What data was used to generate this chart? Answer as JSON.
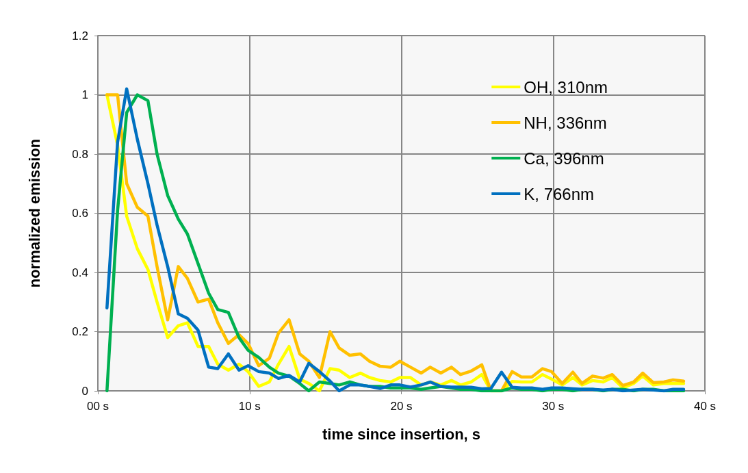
{
  "chart_data": {
    "type": "line",
    "xlabel": "time since insertion, s",
    "ylabel": "normalized emission",
    "x": [
      0.6,
      1.3,
      1.9,
      2.6,
      3.3,
      3.9,
      4.6,
      5.3,
      5.9,
      6.6,
      7.3,
      7.9,
      8.6,
      9.3,
      9.9,
      10.6,
      11.3,
      11.9,
      12.6,
      13.3,
      13.9,
      14.6,
      15.3,
      15.9,
      16.6,
      17.3,
      17.9,
      18.6,
      19.3,
      19.9,
      20.6,
      21.3,
      21.9,
      22.6,
      23.3,
      23.9,
      24.6,
      25.3,
      25.9,
      26.6,
      27.3,
      27.9,
      28.6,
      29.3,
      29.9,
      30.6,
      31.3,
      31.9,
      32.6,
      33.3,
      33.9,
      34.6,
      35.3,
      35.9,
      36.6,
      37.3,
      37.9,
      38.6
    ],
    "series": [
      {
        "name": "OH, 310nm",
        "color": "#ffff00",
        "values": [
          1.0,
          0.83,
          0.59,
          0.48,
          0.41,
          0.3,
          0.18,
          0.22,
          0.23,
          0.15,
          0.15,
          0.09,
          0.07,
          0.09,
          0.065,
          0.015,
          0.03,
          0.09,
          0.15,
          0.04,
          0.025,
          0,
          0.075,
          0.07,
          0.045,
          0.06,
          0.045,
          0.035,
          0.03,
          0.045,
          0.045,
          0.02,
          0.03,
          0.02,
          0.035,
          0.02,
          0.03,
          0.055,
          0,
          0,
          0.032,
          0.03,
          0.03,
          0.055,
          0.04,
          0.02,
          0.045,
          0.02,
          0.035,
          0.03,
          0.045,
          0.01,
          0.025,
          0.05,
          0.02,
          0.025,
          0.025,
          0.025
        ]
      },
      {
        "name": "NH, 336nm",
        "color": "#ffc000",
        "values": [
          1.0,
          1.0,
          0.7,
          0.62,
          0.59,
          0.42,
          0.24,
          0.42,
          0.38,
          0.3,
          0.31,
          0.23,
          0.16,
          0.19,
          0.16,
          0.085,
          0.11,
          0.195,
          0.24,
          0.125,
          0.1,
          0.045,
          0.2,
          0.145,
          0.12,
          0.125,
          0.1,
          0.083,
          0.08,
          0.1,
          0.08,
          0.06,
          0.08,
          0.06,
          0.08,
          0.055,
          0.067,
          0.088,
          0,
          0,
          0.065,
          0.047,
          0.047,
          0.075,
          0.065,
          0.025,
          0.063,
          0.025,
          0.05,
          0.043,
          0.055,
          0.018,
          0.03,
          0.06,
          0.028,
          0.03,
          0.037,
          0.033
        ]
      },
      {
        "name": "Ca, 396nm",
        "color": "#00b050",
        "values": [
          0,
          0.61,
          0.94,
          1.0,
          0.98,
          0.8,
          0.66,
          0.58,
          0.53,
          0.43,
          0.33,
          0.275,
          0.265,
          0.18,
          0.137,
          0.113,
          0.08,
          0.06,
          0.05,
          0.025,
          0,
          0.03,
          0.025,
          0.02,
          0.03,
          0.02,
          0.015,
          0.015,
          0.01,
          0.01,
          0.01,
          0.005,
          0.01,
          0.015,
          0.01,
          0.005,
          0.005,
          0,
          0,
          0,
          0.01,
          0.005,
          0.005,
          0,
          0.005,
          0.005,
          0,
          0.005,
          0.005,
          0,
          0.005,
          0.005,
          0,
          0.005,
          0.005,
          0,
          0,
          0
        ]
      },
      {
        "name": "K, 766nm",
        "color": "#0070c0",
        "values": [
          0.28,
          0.84,
          1.02,
          0.85,
          0.7,
          0.56,
          0.42,
          0.26,
          0.245,
          0.205,
          0.08,
          0.075,
          0.125,
          0.07,
          0.085,
          0.065,
          0.06,
          0.042,
          0.052,
          0.03,
          0.093,
          0.065,
          0.033,
          0,
          0.02,
          0.02,
          0.015,
          0.008,
          0.02,
          0.02,
          0.013,
          0.02,
          0.03,
          0.015,
          0.013,
          0.013,
          0.012,
          0.007,
          0.008,
          0.063,
          0.012,
          0.01,
          0.01,
          0.005,
          0.01,
          0.01,
          0.007,
          0.005,
          0.005,
          0.003,
          0.005,
          0,
          0.003,
          0.005,
          0.003,
          0,
          0.005,
          0.005
        ]
      }
    ],
    "xlim": [
      0,
      40
    ],
    "xticks": [
      {
        "value": 0,
        "label": "00 s"
      },
      {
        "value": 10,
        "label": "10 s"
      },
      {
        "value": 20,
        "label": "20 s"
      },
      {
        "value": 30,
        "label": "30 s"
      },
      {
        "value": 40,
        "label": "40 s"
      }
    ],
    "ylim": [
      0,
      1.2
    ],
    "yticks": [
      0,
      0.2,
      0.4,
      0.6,
      0.8,
      1,
      1.2
    ],
    "grid": true,
    "legend": "top right",
    "marker": "none",
    "line_style": "solid"
  }
}
